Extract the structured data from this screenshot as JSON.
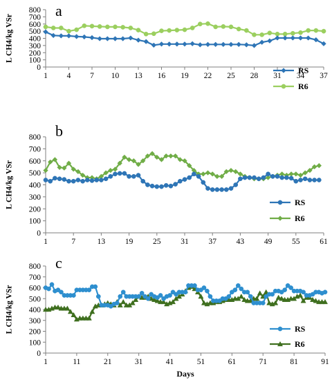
{
  "chart_data": [
    {
      "type": "line",
      "panel_label": "a",
      "ylabel": "L CH4/kg VSr",
      "xlabel": "",
      "ylim": [
        0,
        800
      ],
      "yticks": [
        0,
        100,
        200,
        300,
        400,
        500,
        600,
        700,
        800
      ],
      "xticks": [
        1,
        4,
        7,
        10,
        13,
        16,
        19,
        22,
        25,
        28,
        31,
        34,
        37
      ],
      "xlim": [
        1,
        37
      ],
      "grid": false,
      "legend_position": "bottom-right",
      "colors": {
        "RS": "#2e75b6",
        "R6": "#9bcf5f"
      },
      "markers": {
        "RS": "diamond",
        "R6": "circle"
      },
      "series": [
        {
          "name": "RS",
          "x": [
            1,
            2,
            3,
            4,
            5,
            6,
            7,
            8,
            9,
            10,
            11,
            12,
            13,
            14,
            15,
            16,
            17,
            18,
            19,
            20,
            21,
            22,
            23,
            24,
            25,
            26,
            27,
            28,
            29,
            30,
            31,
            32,
            33,
            34,
            35,
            36,
            37
          ],
          "values": [
            490,
            440,
            435,
            435,
            425,
            420,
            410,
            395,
            395,
            395,
            395,
            405,
            375,
            355,
            305,
            320,
            320,
            320,
            320,
            325,
            310,
            315,
            315,
            315,
            315,
            315,
            310,
            300,
            345,
            365,
            405,
            405,
            405,
            405,
            405,
            380,
            325
          ]
        },
        {
          "name": "R6",
          "x": [
            1,
            2,
            3,
            4,
            5,
            6,
            7,
            8,
            9,
            10,
            11,
            12,
            13,
            14,
            15,
            16,
            17,
            18,
            19,
            20,
            21,
            22,
            23,
            24,
            25,
            26,
            27,
            28,
            29,
            30,
            31,
            32,
            33,
            34,
            35,
            36,
            37
          ],
          "values": [
            560,
            545,
            545,
            500,
            520,
            575,
            570,
            565,
            560,
            560,
            555,
            545,
            515,
            460,
            465,
            505,
            510,
            515,
            520,
            545,
            600,
            605,
            560,
            565,
            560,
            530,
            510,
            450,
            450,
            475,
            460,
            460,
            470,
            480,
            510,
            510,
            500
          ]
        }
      ]
    },
    {
      "type": "line",
      "panel_label": "b",
      "ylabel": "L CH4/kg VSr",
      "xlabel": "",
      "ylim": [
        0,
        800
      ],
      "yticks": [
        0,
        100,
        200,
        300,
        400,
        500,
        600,
        700,
        800
      ],
      "xticks": [
        1,
        7,
        13,
        19,
        25,
        31,
        37,
        43,
        49,
        55,
        61
      ],
      "xlim": [
        1,
        61
      ],
      "grid": false,
      "legend_position": "bottom-right",
      "colors": {
        "RS": "#2e75b6",
        "R6": "#70ad47"
      },
      "markers": {
        "RS": "circle",
        "R6": "diamond"
      },
      "series": [
        {
          "name": "RS",
          "x": [
            1,
            2,
            3,
            4,
            5,
            6,
            7,
            8,
            9,
            10,
            11,
            12,
            13,
            14,
            15,
            16,
            17,
            18,
            19,
            20,
            21,
            22,
            23,
            24,
            25,
            26,
            27,
            28,
            29,
            30,
            31,
            32,
            33,
            34,
            35,
            36,
            37,
            38,
            39,
            40,
            41,
            42,
            43,
            44,
            45,
            46,
            47,
            48,
            49,
            50,
            51,
            52,
            53,
            54,
            55,
            56,
            57,
            58,
            59,
            60
          ],
          "values": [
            440,
            430,
            455,
            450,
            445,
            430,
            430,
            440,
            430,
            440,
            435,
            440,
            440,
            450,
            470,
            490,
            495,
            495,
            470,
            470,
            480,
            430,
            400,
            390,
            385,
            385,
            395,
            390,
            405,
            430,
            445,
            460,
            490,
            470,
            420,
            370,
            360,
            360,
            360,
            360,
            370,
            400,
            450,
            460,
            460,
            460,
            450,
            460,
            490,
            470,
            470,
            460,
            460,
            455,
            430,
            440,
            450,
            440,
            440,
            440
          ]
        },
        {
          "name": "R6",
          "x": [
            1,
            2,
            3,
            4,
            5,
            6,
            7,
            8,
            9,
            10,
            11,
            12,
            13,
            14,
            15,
            16,
            17,
            18,
            19,
            20,
            21,
            22,
            23,
            24,
            25,
            26,
            27,
            28,
            29,
            30,
            31,
            32,
            33,
            34,
            35,
            36,
            37,
            38,
            39,
            40,
            41,
            42,
            43,
            44,
            45,
            46,
            47,
            48,
            49,
            50,
            51,
            52,
            53,
            54,
            55,
            56,
            57,
            58,
            59,
            60
          ],
          "values": [
            520,
            590,
            610,
            545,
            540,
            580,
            530,
            510,
            480,
            460,
            460,
            450,
            470,
            500,
            520,
            530,
            580,
            630,
            610,
            600,
            570,
            600,
            640,
            660,
            630,
            610,
            640,
            640,
            640,
            610,
            600,
            560,
            520,
            490,
            490,
            500,
            490,
            470,
            470,
            510,
            520,
            510,
            490,
            470,
            460,
            450,
            450,
            450,
            460,
            470,
            480,
            490,
            480,
            490,
            490,
            480,
            500,
            520,
            550,
            560
          ]
        }
      ]
    },
    {
      "type": "line",
      "panel_label": "c",
      "ylabel": "L CH4/kg VSr",
      "xlabel": "Days",
      "ylim": [
        0,
        800
      ],
      "yticks": [
        0,
        100,
        200,
        300,
        400,
        500,
        600,
        700,
        800
      ],
      "xticks": [
        1,
        11,
        21,
        31,
        41,
        51,
        61,
        71,
        81,
        91
      ],
      "xlim": [
        1,
        91
      ],
      "grid": false,
      "legend_position": "bottom-right",
      "colors": {
        "RS": "#2e8fcf",
        "R6": "#3f6f1f"
      },
      "markers": {
        "RS": "circle",
        "R6": "triangle"
      },
      "series": [
        {
          "name": "RS",
          "x": [
            1,
            2,
            3,
            4,
            5,
            6,
            7,
            8,
            9,
            10,
            11,
            12,
            13,
            14,
            15,
            16,
            17,
            18,
            19,
            20,
            21,
            22,
            23,
            24,
            25,
            26,
            27,
            28,
            29,
            30,
            31,
            32,
            33,
            34,
            35,
            36,
            37,
            38,
            39,
            40,
            41,
            42,
            43,
            44,
            45,
            46,
            47,
            48,
            49,
            50,
            51,
            52,
            53,
            54,
            55,
            56,
            57,
            58,
            59,
            60,
            61,
            62,
            63,
            64,
            65,
            66,
            67,
            68,
            69,
            70,
            71,
            72,
            73,
            74,
            75,
            76,
            77,
            78,
            79,
            80,
            81,
            82,
            83,
            84,
            85,
            86,
            87,
            88,
            89,
            90,
            91
          ],
          "values": [
            600,
            590,
            630,
            570,
            580,
            560,
            530,
            530,
            530,
            530,
            580,
            580,
            580,
            580,
            580,
            610,
            610,
            520,
            440,
            440,
            440,
            430,
            450,
            460,
            520,
            560,
            520,
            520,
            520,
            520,
            520,
            550,
            520,
            500,
            540,
            520,
            510,
            530,
            500,
            520,
            530,
            560,
            540,
            560,
            560,
            560,
            620,
            620,
            620,
            580,
            580,
            600,
            570,
            520,
            480,
            480,
            480,
            500,
            500,
            520,
            560,
            580,
            620,
            590,
            560,
            560,
            520,
            460,
            460,
            460,
            460,
            520,
            540,
            540,
            570,
            570,
            560,
            580,
            620,
            600,
            570,
            570,
            570,
            560,
            530,
            530,
            540,
            560,
            560,
            550,
            560
          ]
        },
        {
          "name": "R6",
          "x": [
            1,
            2,
            3,
            4,
            5,
            6,
            7,
            8,
            9,
            10,
            11,
            12,
            13,
            14,
            15,
            16,
            17,
            18,
            19,
            20,
            21,
            22,
            23,
            24,
            25,
            26,
            27,
            28,
            29,
            30,
            31,
            32,
            33,
            34,
            35,
            36,
            37,
            38,
            39,
            40,
            41,
            42,
            43,
            44,
            45,
            46,
            47,
            48,
            49,
            50,
            51,
            52,
            53,
            54,
            55,
            56,
            57,
            58,
            59,
            60,
            61,
            62,
            63,
            64,
            65,
            66,
            67,
            68,
            69,
            70,
            71,
            72,
            73,
            74,
            75,
            76,
            77,
            78,
            79,
            80,
            81,
            82,
            83,
            84,
            85,
            86,
            87,
            88,
            89,
            90,
            91
          ],
          "values": [
            400,
            400,
            410,
            420,
            420,
            410,
            410,
            410,
            380,
            350,
            310,
            320,
            320,
            320,
            320,
            380,
            430,
            440,
            440,
            450,
            460,
            450,
            440,
            470,
            440,
            470,
            440,
            440,
            460,
            490,
            520,
            510,
            510,
            520,
            500,
            490,
            480,
            470,
            470,
            450,
            460,
            470,
            500,
            520,
            540,
            570,
            600,
            610,
            590,
            560,
            520,
            460,
            450,
            460,
            460,
            470,
            470,
            480,
            490,
            490,
            490,
            500,
            500,
            520,
            490,
            480,
            480,
            500,
            500,
            550,
            520,
            560,
            460,
            450,
            460,
            510,
            500,
            490,
            490,
            500,
            500,
            520,
            530,
            480,
            510,
            510,
            490,
            480,
            470,
            470,
            470
          ]
        }
      ]
    }
  ]
}
